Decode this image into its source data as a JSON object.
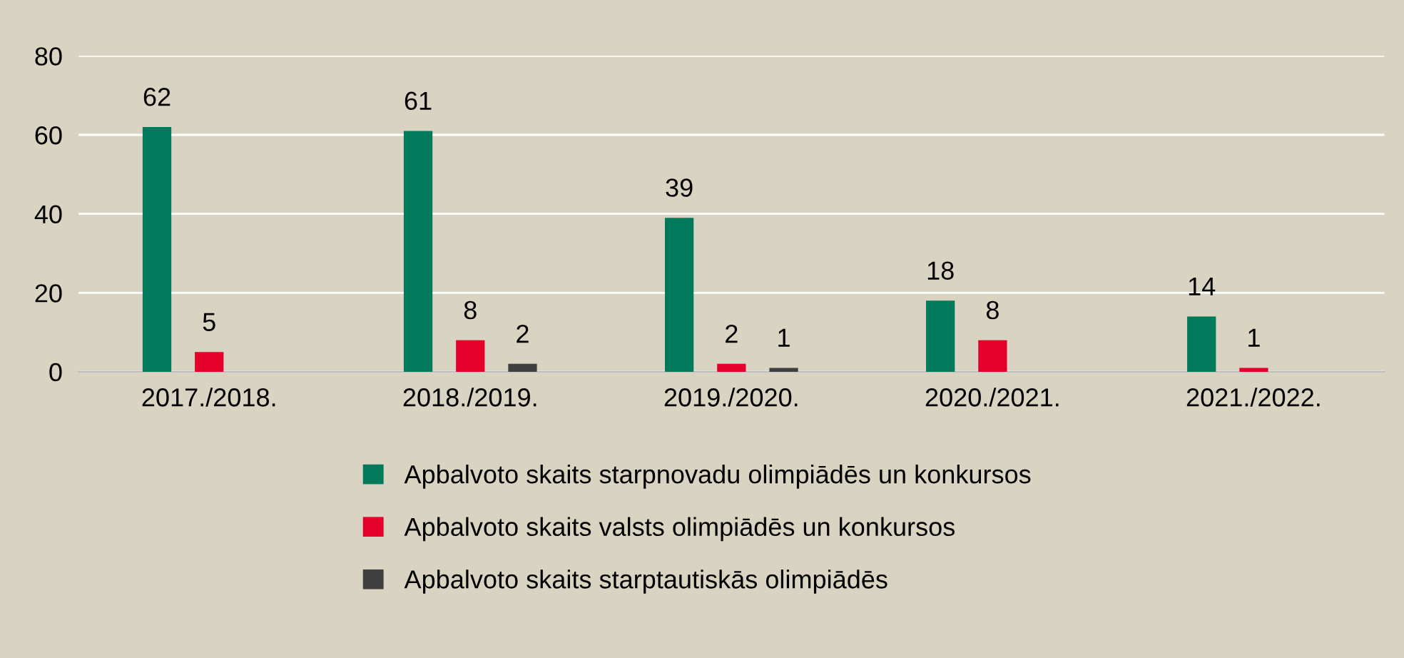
{
  "chart_data": {
    "type": "bar",
    "categories": [
      "2017./2018.",
      "2018./2019.",
      "2019./2020.",
      "2020./2021.",
      "2021./2022."
    ],
    "series": [
      {
        "name": "Apbalvoto skaits starpnovadu olimpiādēs un konkursos",
        "color": "#007a5a",
        "values": [
          62,
          61,
          39,
          18,
          14
        ]
      },
      {
        "name": "Apbalvoto skaits valsts olimpiādēs un konkursos",
        "color": "#e4002b",
        "values": [
          5,
          8,
          2,
          8,
          1
        ]
      },
      {
        "name": "Apbalvoto skaits starptautiskās olimpiādēs",
        "color": "#404040",
        "values": [
          null,
          2,
          1,
          null,
          null
        ]
      }
    ],
    "ylim": [
      0,
      80
    ],
    "yticks": [
      0,
      20,
      40,
      60,
      80
    ],
    "grid": "y",
    "data_labels": true,
    "legend": "bottom"
  }
}
